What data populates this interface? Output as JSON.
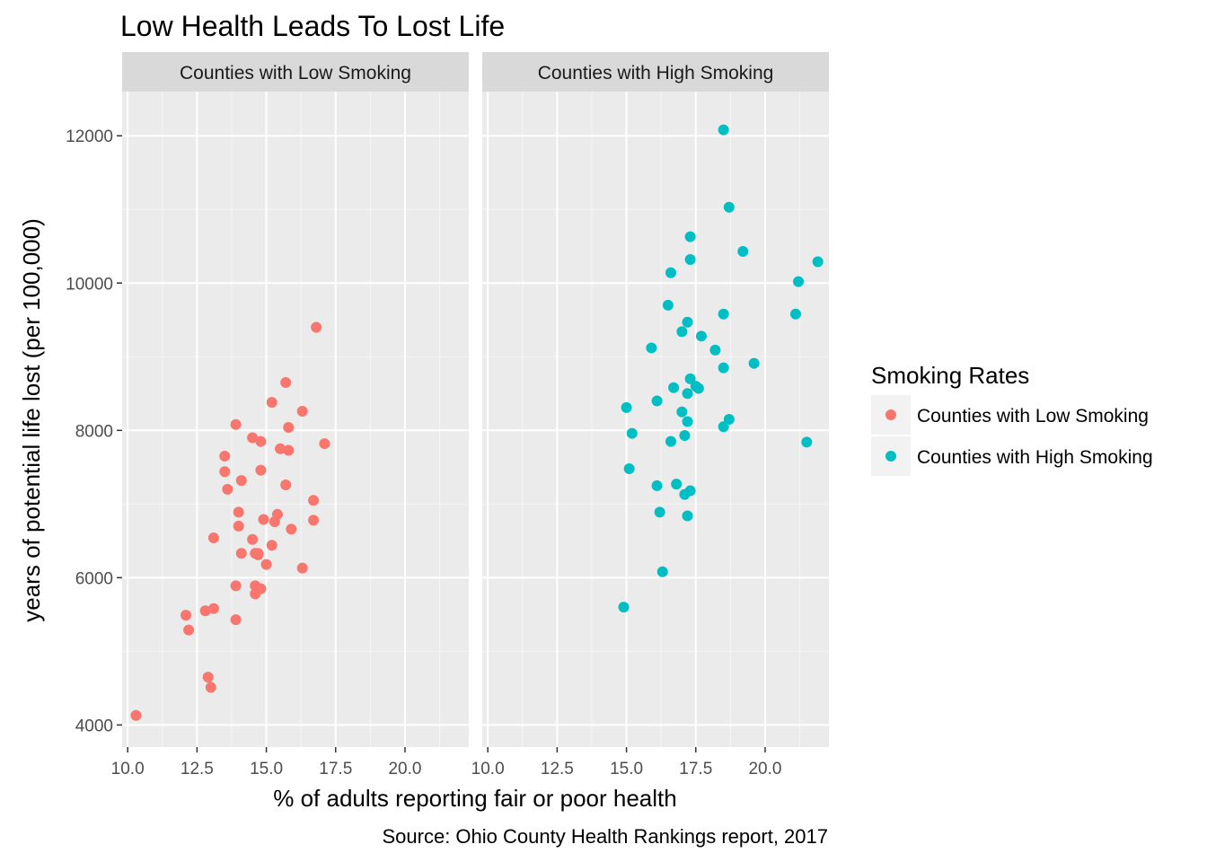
{
  "chart_data": {
    "type": "scatter",
    "title": "Low Health Leads To Lost Life",
    "xlabel": "% of adults reporting fair or poor health",
    "ylabel": "years of potential life lost (per 100,000)",
    "caption": "Source: Ohio County Health Rankings report, 2017",
    "xlim": [
      9.8,
      22.3
    ],
    "ylim": [
      3700,
      12600
    ],
    "x_ticks": [
      "10.0",
      "12.5",
      "15.0",
      "17.5",
      "20.0"
    ],
    "y_ticks": [
      "4000",
      "6000",
      "8000",
      "10000",
      "12000"
    ],
    "grid": true,
    "legend": {
      "title": "Smoking Rates",
      "position": "right",
      "entries": [
        "Counties with Low Smoking",
        "Counties with High Smoking"
      ]
    },
    "panels": [
      {
        "name": "Counties with Low Smoking",
        "color": "#F8766D",
        "points": [
          [
            10.3,
            4130
          ],
          [
            12.1,
            5490
          ],
          [
            12.2,
            5290
          ],
          [
            12.8,
            5550
          ],
          [
            12.9,
            4650
          ],
          [
            13.0,
            4510
          ],
          [
            13.1,
            5580
          ],
          [
            13.1,
            6540
          ],
          [
            13.5,
            7440
          ],
          [
            13.5,
            7650
          ],
          [
            13.6,
            7200
          ],
          [
            13.9,
            8080
          ],
          [
            13.9,
            5430
          ],
          [
            13.9,
            5890
          ],
          [
            14.0,
            6890
          ],
          [
            14.0,
            6700
          ],
          [
            14.1,
            7320
          ],
          [
            14.1,
            6330
          ],
          [
            14.5,
            6520
          ],
          [
            14.5,
            7900
          ],
          [
            14.6,
            5890
          ],
          [
            14.6,
            5780
          ],
          [
            14.6,
            6330
          ],
          [
            14.7,
            6330
          ],
          [
            14.7,
            6310
          ],
          [
            14.8,
            5850
          ],
          [
            14.8,
            7850
          ],
          [
            14.8,
            7460
          ],
          [
            14.9,
            6790
          ],
          [
            15.0,
            6180
          ],
          [
            15.2,
            8380
          ],
          [
            15.2,
            6440
          ],
          [
            15.3,
            6760
          ],
          [
            15.4,
            6860
          ],
          [
            15.5,
            7750
          ],
          [
            15.7,
            8650
          ],
          [
            15.7,
            7260
          ],
          [
            15.8,
            8040
          ],
          [
            15.8,
            7730
          ],
          [
            15.9,
            6660
          ],
          [
            16.3,
            8260
          ],
          [
            16.3,
            6130
          ],
          [
            16.7,
            7050
          ],
          [
            16.7,
            6780
          ],
          [
            16.8,
            9400
          ],
          [
            17.1,
            7820
          ]
        ]
      },
      {
        "name": "Counties with High Smoking",
        "color": "#00BFC4",
        "points": [
          [
            14.9,
            5600
          ],
          [
            15.0,
            8310
          ],
          [
            15.1,
            7480
          ],
          [
            15.2,
            7960
          ],
          [
            15.9,
            9120
          ],
          [
            16.1,
            8400
          ],
          [
            16.1,
            7250
          ],
          [
            16.2,
            6890
          ],
          [
            16.3,
            6080
          ],
          [
            16.5,
            9700
          ],
          [
            16.6,
            10140
          ],
          [
            16.6,
            7850
          ],
          [
            16.7,
            8580
          ],
          [
            16.8,
            7270
          ],
          [
            17.0,
            9340
          ],
          [
            17.0,
            8250
          ],
          [
            17.1,
            7130
          ],
          [
            17.1,
            7930
          ],
          [
            17.2,
            8500
          ],
          [
            17.2,
            8120
          ],
          [
            17.2,
            9470
          ],
          [
            17.2,
            6840
          ],
          [
            17.3,
            8700
          ],
          [
            17.3,
            7180
          ],
          [
            17.3,
            10630
          ],
          [
            17.3,
            10320
          ],
          [
            17.5,
            8600
          ],
          [
            17.6,
            8570
          ],
          [
            17.7,
            9280
          ],
          [
            18.2,
            9090
          ],
          [
            18.5,
            12080
          ],
          [
            18.5,
            9580
          ],
          [
            18.5,
            8850
          ],
          [
            18.5,
            8050
          ],
          [
            18.7,
            11030
          ],
          [
            18.7,
            8150
          ],
          [
            19.2,
            10430
          ],
          [
            19.6,
            8910
          ],
          [
            21.1,
            9580
          ],
          [
            21.2,
            10020
          ],
          [
            21.5,
            7840
          ],
          [
            21.9,
            10290
          ]
        ]
      }
    ]
  }
}
